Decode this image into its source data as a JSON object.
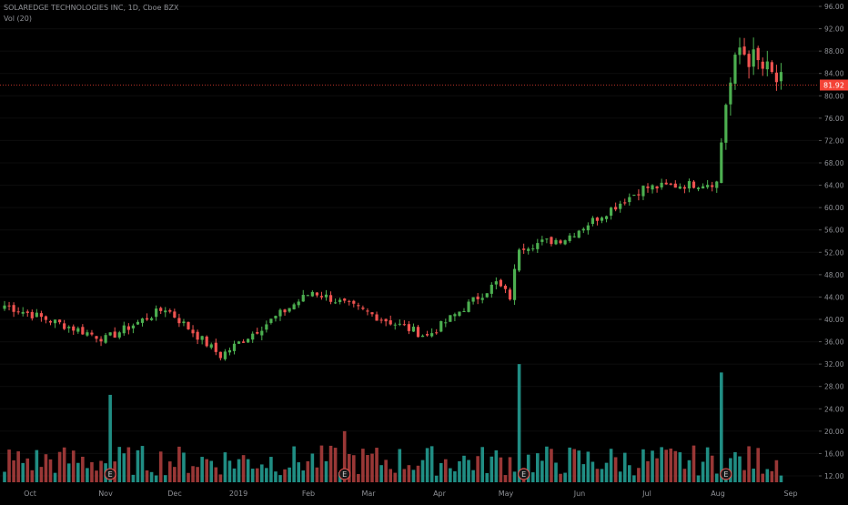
{
  "header": {
    "symbol_line": "SOLAREDGE TECHNOLOGIES INC, 1D, Cboe BZX",
    "volume_line": "Vol (20)"
  },
  "colors": {
    "background": "#000000",
    "up": "#4caf50",
    "down": "#ef5350",
    "up_volume": "#26a69a",
    "down_volume": "#b4413f",
    "axis_text": "#8f9196",
    "last_price_tag": "#f44336"
  },
  "chart_data": {
    "type": "candlestick",
    "interval": "1D",
    "y_axis_ticks": [
      "96.00",
      "92.00",
      "88.00",
      "84.00",
      "80.00",
      "76.00",
      "72.00",
      "68.00",
      "64.00",
      "60.00",
      "56.00",
      "52.00",
      "48.00",
      "44.00",
      "40.00",
      "36.00",
      "32.00",
      "28.00",
      "24.00",
      "20.00",
      "16.00",
      "12.00"
    ],
    "y_tick_values": [
      96,
      92,
      88,
      84,
      80,
      76,
      72,
      68,
      64,
      60,
      56,
      52,
      48,
      44,
      40,
      36,
      32,
      28,
      24,
      20,
      16,
      12
    ],
    "ylim": [
      11,
      97
    ],
    "x_axis_labels": [
      "Oct",
      "Nov",
      "Dec",
      "2019",
      "Feb",
      "Mar",
      "Apr",
      "May",
      "Jun",
      "Jul",
      "Aug",
      "Sep"
    ],
    "last_price": "81.92",
    "last_price_value": 81.92,
    "earnings_marker_label": "E",
    "earnings_markers_bar_index": [
      23,
      74,
      113,
      157
    ],
    "key_closes": [
      {
        "bar": 0,
        "close": 42.5
      },
      {
        "bar": 22,
        "close": 36.5
      },
      {
        "bar": 35,
        "close": 42.0
      },
      {
        "bar": 47,
        "close": 33.5
      },
      {
        "bar": 67,
        "close": 45.0
      },
      {
        "bar": 92,
        "close": 37.0
      },
      {
        "bar": 107,
        "close": 46.5
      },
      {
        "bar": 110,
        "close": 44.0
      },
      {
        "bar": 112,
        "close": 53.0
      },
      {
        "bar": 122,
        "close": 54.5
      },
      {
        "bar": 139,
        "close": 63.5
      },
      {
        "bar": 155,
        "close": 64.5
      },
      {
        "bar": 157,
        "close": 79.0
      },
      {
        "bar": 160,
        "close": 88.5
      },
      {
        "bar": 169,
        "close": 81.92
      }
    ],
    "volume_spikes": [
      {
        "bar": 23,
        "level": 26.5
      },
      {
        "bar": 74,
        "level": 20.0
      },
      {
        "bar": 112,
        "level": 32.0
      },
      {
        "bar": 156,
        "level": 30.5
      }
    ]
  }
}
